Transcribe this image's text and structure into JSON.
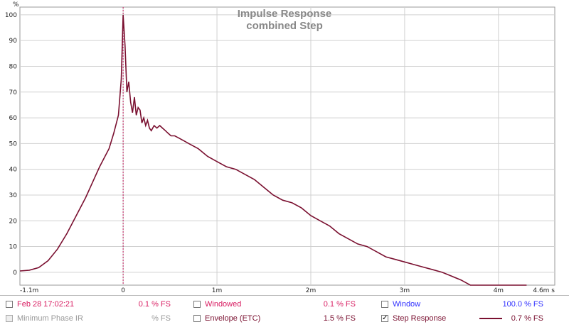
{
  "chart_data": {
    "type": "line",
    "title": "Impulse Response",
    "subtitle": "combined Step",
    "y_unit": "%",
    "x_unit": "s",
    "xlim": [
      -0.0011,
      0.0046
    ],
    "ylim": [
      -5,
      103
    ],
    "x_ticks": [
      {
        "value": -0.0011,
        "label": "-1.1m"
      },
      {
        "value": 0,
        "label": "0"
      },
      {
        "value": 0.001,
        "label": "1m"
      },
      {
        "value": 0.002,
        "label": "2m"
      },
      {
        "value": 0.003,
        "label": "3m"
      },
      {
        "value": 0.004,
        "label": "4m"
      },
      {
        "value": 0.0046,
        "label": "4.6m s"
      }
    ],
    "y_ticks": [
      0,
      10,
      20,
      30,
      40,
      50,
      60,
      70,
      80,
      90,
      100
    ],
    "marker_x": 0,
    "grid": true,
    "series": [
      {
        "color": "#7a1030",
        "x": [
          -0.0011,
          -0.001,
          -0.0009,
          -0.0008,
          -0.0007,
          -0.0006,
          -0.0005,
          -0.0004,
          -0.0003,
          -0.00025,
          -0.0002,
          -0.00015,
          -0.0001,
          -5e-05,
          -2e-05,
          0.0,
          2e-05,
          4e-05,
          6e-05,
          8e-05,
          0.0001,
          0.00012,
          0.00014,
          0.00016,
          0.00018,
          0.0002,
          0.00022,
          0.00024,
          0.00026,
          0.00028,
          0.0003,
          0.00033,
          0.00036,
          0.00039,
          0.00042,
          0.00045,
          0.00048,
          0.00051,
          0.00055,
          0.0006,
          0.00065,
          0.0007,
          0.0008,
          0.0009,
          0.001,
          0.0011,
          0.0012,
          0.0013,
          0.0014,
          0.0015,
          0.0016,
          0.0017,
          0.0018,
          0.0019,
          0.002,
          0.0021,
          0.0022,
          0.0023,
          0.0024,
          0.0025,
          0.0026,
          0.0027,
          0.0028,
          0.0029,
          0.003,
          0.0031,
          0.0032,
          0.0033,
          0.0034,
          0.0035,
          0.0036,
          0.0037,
          0.0038,
          0.0039,
          0.004,
          0.0041,
          0.0042,
          0.0043
        ],
        "y": [
          0.5,
          0.8,
          1.8,
          4.5,
          9,
          15,
          22,
          29,
          37,
          41,
          44.5,
          48,
          54,
          61,
          75,
          100,
          88,
          70,
          74,
          66,
          62,
          68,
          61,
          64,
          63,
          58,
          60,
          57,
          59,
          56,
          55,
          57,
          56,
          57,
          56,
          55,
          54,
          53,
          53,
          52,
          51,
          50,
          48,
          45,
          43,
          41,
          40,
          38,
          36,
          33,
          30,
          28,
          27,
          25,
          22,
          20,
          18,
          15,
          13,
          11,
          10,
          8,
          6,
          5,
          4,
          3,
          2,
          1,
          0,
          -1.5,
          -3,
          -5,
          -5,
          -5,
          -5,
          -5,
          -5,
          -5
        ]
      }
    ]
  },
  "legend": {
    "row1": [
      {
        "label": "Feb 28 17:02:21",
        "value": "0.1 % FS",
        "checked": false,
        "color": "#d81b60"
      },
      {
        "label": "Windowed",
        "value": "0.1 % FS",
        "checked": false,
        "color": "#d81b60"
      },
      {
        "label": "Window",
        "value": "100.0 % FS",
        "checked": false,
        "color": "#3030ff"
      }
    ],
    "row2": [
      {
        "label": "Minimum Phase IR",
        "value": "% FS",
        "checked": false,
        "disabled": true,
        "color": "#999999"
      },
      {
        "label": "Envelope (ETC)",
        "value": "1.5 % FS",
        "checked": false,
        "color": "#7a1030"
      },
      {
        "label": "Step Response",
        "value": "0.7 % FS",
        "checked": true,
        "color": "#7a1030"
      }
    ],
    "check_glyph": "✓"
  }
}
